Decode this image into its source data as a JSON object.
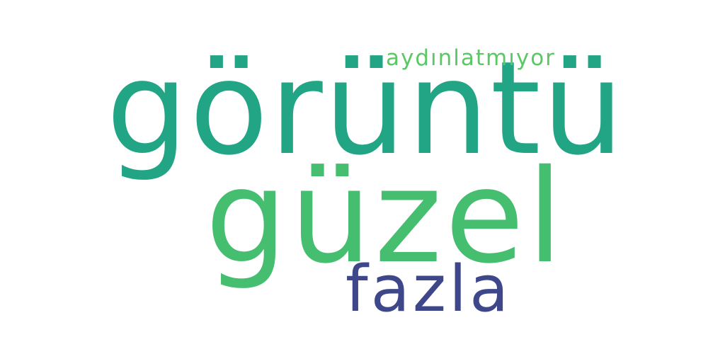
{
  "words": [
    {
      "text": "görüntü",
      "color": "#21a585"
    },
    {
      "text": "güzel",
      "color": "#45bf6f"
    },
    {
      "text": "fazla",
      "color": "#3f478b"
    },
    {
      "text": "aydınlatmıyor",
      "color": "#5ac864"
    }
  ]
}
